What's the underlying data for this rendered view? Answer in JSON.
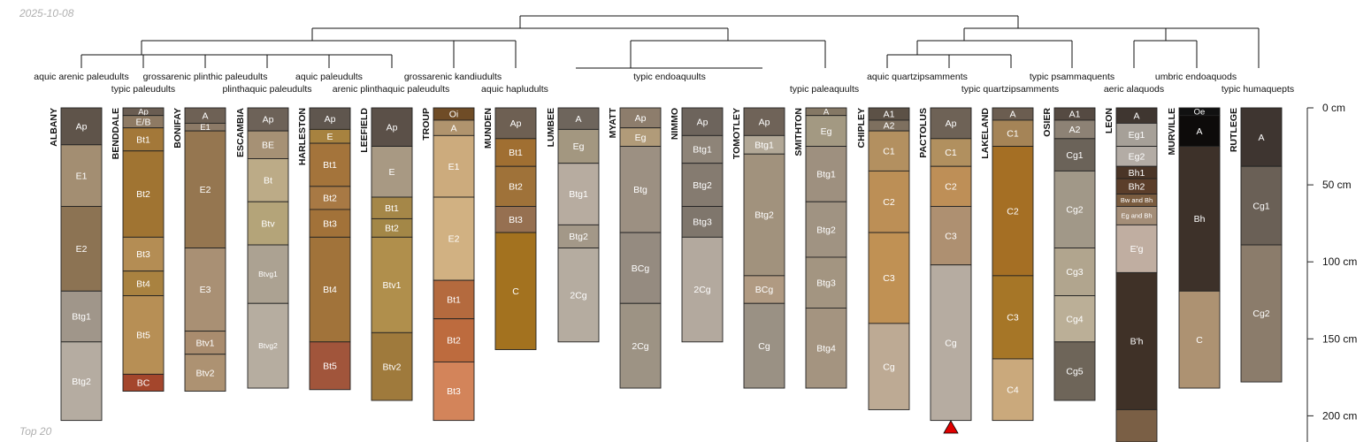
{
  "header": {
    "date": "2025-10-08"
  },
  "footer": {
    "note": "Top 20"
  },
  "chart_data": {
    "type": "soil-profile-sketch",
    "depth_units": "cm",
    "depth_axis": {
      "ticks": [
        0,
        50,
        100,
        150,
        200
      ],
      "tick_labels": [
        "0 cm",
        "50 cm",
        "100 cm",
        "150 cm",
        "200 cm"
      ],
      "range": [
        0,
        218
      ]
    },
    "profiles": [
      {
        "name": "ALBANY",
        "horizons": [
          {
            "name": "Ap",
            "top": 0,
            "bottom": 24,
            "color": "#5f544a"
          },
          {
            "name": "E1",
            "top": 24,
            "bottom": 64,
            "color": "#a38e72"
          },
          {
            "name": "E2",
            "top": 64,
            "bottom": 119,
            "color": "#8c7353"
          },
          {
            "name": "Btg1",
            "top": 119,
            "bottom": 152,
            "color": "#a0968a"
          },
          {
            "name": "Btg2",
            "top": 152,
            "bottom": 203,
            "color": "#b5aca1"
          }
        ]
      },
      {
        "name": "BENDDALE",
        "horizons": [
          {
            "name": "Ap",
            "top": 0,
            "bottom": 5,
            "color": "#6a5d52"
          },
          {
            "name": "E/B",
            "top": 5,
            "bottom": 13,
            "color": "#8e7a63"
          },
          {
            "name": "Bt1",
            "top": 13,
            "bottom": 28,
            "color": "#a37839"
          },
          {
            "name": "Bt2",
            "top": 28,
            "bottom": 84,
            "color": "#a07432"
          },
          {
            "name": "Bt3",
            "top": 84,
            "bottom": 106,
            "color": "#b48d54"
          },
          {
            "name": "Bt4",
            "top": 106,
            "bottom": 122,
            "color": "#a98240"
          },
          {
            "name": "Bt5",
            "top": 122,
            "bottom": 173,
            "color": "#b78f55"
          },
          {
            "name": "BC",
            "top": 173,
            "bottom": 184,
            "color": "#a4462c"
          }
        ]
      },
      {
        "name": "BONIFAY",
        "horizons": [
          {
            "name": "A",
            "top": 0,
            "bottom": 10,
            "color": "#6e6155"
          },
          {
            "name": "E1",
            "top": 10,
            "bottom": 15,
            "color": "#8c7a67"
          },
          {
            "name": "E2",
            "top": 15,
            "bottom": 91,
            "color": "#957650"
          },
          {
            "name": "E3",
            "top": 91,
            "bottom": 145,
            "color": "#a99074"
          },
          {
            "name": "Btv1",
            "top": 145,
            "bottom": 160,
            "color": "#a98c6e"
          },
          {
            "name": "Btv2",
            "top": 160,
            "bottom": 184,
            "color": "#ad9272"
          }
        ]
      },
      {
        "name": "ESCAMBIA",
        "horizons": [
          {
            "name": "Ap",
            "top": 0,
            "bottom": 15,
            "color": "#6d6258"
          },
          {
            "name": "BE",
            "top": 15,
            "bottom": 33,
            "color": "#a69175"
          },
          {
            "name": "Bt",
            "top": 33,
            "bottom": 61,
            "color": "#bcab87"
          },
          {
            "name": "Btv",
            "top": 61,
            "bottom": 89,
            "color": "#b4a479"
          },
          {
            "name": "Btvg1",
            "top": 89,
            "bottom": 127,
            "color": "#aca292"
          },
          {
            "name": "Btvg2",
            "top": 127,
            "bottom": 182,
            "color": "#b6ada0"
          }
        ]
      },
      {
        "name": "HARLESTON",
        "horizons": [
          {
            "name": "Ap",
            "top": 0,
            "bottom": 14,
            "color": "#5f564e"
          },
          {
            "name": "E",
            "top": 14,
            "bottom": 23,
            "color": "#a7823f"
          },
          {
            "name": "Bt1",
            "top": 23,
            "bottom": 51,
            "color": "#a4743b"
          },
          {
            "name": "Bt2",
            "top": 51,
            "bottom": 66,
            "color": "#a87944"
          },
          {
            "name": "Bt3",
            "top": 66,
            "bottom": 84,
            "color": "#a27239"
          },
          {
            "name": "Bt4",
            "top": 84,
            "bottom": 152,
            "color": "#a1733a"
          },
          {
            "name": "Bt5",
            "top": 152,
            "bottom": 183,
            "color": "#a1553b"
          }
        ]
      },
      {
        "name": "LEEFIELD",
        "horizons": [
          {
            "name": "Ap",
            "top": 0,
            "bottom": 25,
            "color": "#5b5048"
          },
          {
            "name": "E",
            "top": 25,
            "bottom": 58,
            "color": "#a89983"
          },
          {
            "name": "Bt1",
            "top": 58,
            "bottom": 72,
            "color": "#a58748"
          },
          {
            "name": "Bt2",
            "top": 72,
            "bottom": 84,
            "color": "#a38747"
          },
          {
            "name": "Btv1",
            "top": 84,
            "bottom": 146,
            "color": "#b08f4c"
          },
          {
            "name": "Btv2",
            "top": 146,
            "bottom": 190,
            "color": "#9f7a3c"
          }
        ]
      },
      {
        "name": "TROUP",
        "horizons": [
          {
            "name": "Oi",
            "top": 0,
            "bottom": 8,
            "color": "#6f4c26"
          },
          {
            "name": "A",
            "top": 8,
            "bottom": 18,
            "color": "#b0946e"
          },
          {
            "name": "E1",
            "top": 18,
            "bottom": 58,
            "color": "#ccab7d"
          },
          {
            "name": "E2",
            "top": 58,
            "bottom": 112,
            "color": "#d1b182"
          },
          {
            "name": "Bt1",
            "top": 112,
            "bottom": 137,
            "color": "#b46a3e"
          },
          {
            "name": "Bt2",
            "top": 137,
            "bottom": 165,
            "color": "#bd6b3e"
          },
          {
            "name": "Bt3",
            "top": 165,
            "bottom": 203,
            "color": "#d3845a"
          }
        ]
      },
      {
        "name": "MUNDEN",
        "horizons": [
          {
            "name": "Ap",
            "top": 0,
            "bottom": 20,
            "color": "#6e6053"
          },
          {
            "name": "Bt1",
            "top": 20,
            "bottom": 38,
            "color": "#a06f32"
          },
          {
            "name": "Bt2",
            "top": 38,
            "bottom": 64,
            "color": "#9f7239"
          },
          {
            "name": "Bt3",
            "top": 64,
            "bottom": 81,
            "color": "#967051"
          },
          {
            "name": "C",
            "top": 81,
            "bottom": 157,
            "color": "#a3721f"
          }
        ]
      },
      {
        "name": "LUMBEE",
        "horizons": [
          {
            "name": "A",
            "top": 0,
            "bottom": 14,
            "color": "#6e655c"
          },
          {
            "name": "Eg",
            "top": 14,
            "bottom": 36,
            "color": "#a39780"
          },
          {
            "name": "Btg1",
            "top": 36,
            "bottom": 76,
            "color": "#b7aca0"
          },
          {
            "name": "Btg2",
            "top": 76,
            "bottom": 91,
            "color": "#a39888"
          },
          {
            "name": "2Cg",
            "top": 91,
            "bottom": 152,
            "color": "#b5aca0"
          }
        ]
      },
      {
        "name": "MYATT",
        "horizons": [
          {
            "name": "Ap",
            "top": 0,
            "bottom": 13,
            "color": "#8d7d6c"
          },
          {
            "name": "Eg",
            "top": 13,
            "bottom": 25,
            "color": "#b19b79"
          },
          {
            "name": "Btg",
            "top": 25,
            "bottom": 81,
            "color": "#9c9082"
          },
          {
            "name": "BCg",
            "top": 81,
            "bottom": 127,
            "color": "#958b80"
          },
          {
            "name": "2Cg",
            "top": 127,
            "bottom": 182,
            "color": "#9d9384"
          }
        ]
      },
      {
        "name": "NIMMO",
        "horizons": [
          {
            "name": "Ap",
            "top": 0,
            "bottom": 18,
            "color": "#6d645c"
          },
          {
            "name": "Btg1",
            "top": 18,
            "bottom": 36,
            "color": "#8e8478"
          },
          {
            "name": "Btg2",
            "top": 36,
            "bottom": 64,
            "color": "#857b70"
          },
          {
            "name": "Btg3",
            "top": 64,
            "bottom": 84,
            "color": "#7f766c"
          },
          {
            "name": "2Cg",
            "top": 84,
            "bottom": 152,
            "color": "#b3a99e"
          }
        ]
      },
      {
        "name": "TOMOTLEY",
        "horizons": [
          {
            "name": "Ap",
            "top": 0,
            "bottom": 18,
            "color": "#6f6358"
          },
          {
            "name": "Btg1",
            "top": 18,
            "bottom": 30,
            "color": "#b2a897"
          },
          {
            "name": "Btg2",
            "top": 30,
            "bottom": 109,
            "color": "#a1927d"
          },
          {
            "name": "BCg",
            "top": 109,
            "bottom": 127,
            "color": "#b09a82"
          },
          {
            "name": "Cg",
            "top": 127,
            "bottom": 182,
            "color": "#9a9184"
          }
        ]
      },
      {
        "name": "SMITHTON",
        "horizons": [
          {
            "name": "A",
            "top": 0,
            "bottom": 5,
            "color": "#857865"
          },
          {
            "name": "Eg",
            "top": 5,
            "bottom": 25,
            "color": "#a39982"
          },
          {
            "name": "Btg1",
            "top": 25,
            "bottom": 61,
            "color": "#9e907f"
          },
          {
            "name": "Btg2",
            "top": 61,
            "bottom": 97,
            "color": "#a09382"
          },
          {
            "name": "Btg3",
            "top": 97,
            "bottom": 130,
            "color": "#a39581"
          },
          {
            "name": "Btg4",
            "top": 130,
            "bottom": 182,
            "color": "#a49480"
          }
        ]
      },
      {
        "name": "CHIPLEY",
        "horizons": [
          {
            "name": "A1",
            "top": 0,
            "bottom": 8,
            "color": "#5c5146"
          },
          {
            "name": "A2",
            "top": 8,
            "bottom": 15,
            "color": "#7e705f"
          },
          {
            "name": "C1",
            "top": 15,
            "bottom": 41,
            "color": "#b39060"
          },
          {
            "name": "C2",
            "top": 41,
            "bottom": 81,
            "color": "#bc8f56"
          },
          {
            "name": "C3",
            "top": 81,
            "bottom": 140,
            "color": "#c09154"
          },
          {
            "name": "Cg",
            "top": 140,
            "bottom": 196,
            "color": "#bdaa94"
          }
        ]
      },
      {
        "name": "PACTOLUS",
        "horizons": [
          {
            "name": "Ap",
            "top": 0,
            "bottom": 20,
            "color": "#6e6256"
          },
          {
            "name": "C1",
            "top": 20,
            "bottom": 38,
            "color": "#b1905f"
          },
          {
            "name": "C2",
            "top": 38,
            "bottom": 64,
            "color": "#be8f57"
          },
          {
            "name": "C3",
            "top": 64,
            "bottom": 102,
            "color": "#ae9071"
          },
          {
            "name": "Cg",
            "top": 102,
            "bottom": 203,
            "color": "#b6aca1"
          }
        ]
      },
      {
        "name": "LAKELAND",
        "horizons": [
          {
            "name": "A",
            "top": 0,
            "bottom": 8,
            "color": "#6b5d50"
          },
          {
            "name": "C1",
            "top": 8,
            "bottom": 25,
            "color": "#a58457"
          },
          {
            "name": "C2",
            "top": 25,
            "bottom": 109,
            "color": "#a56f24"
          },
          {
            "name": "C3",
            "top": 109,
            "bottom": 163,
            "color": "#a67627"
          },
          {
            "name": "C4",
            "top": 163,
            "bottom": 203,
            "color": "#caa97c"
          }
        ]
      },
      {
        "name": "OSIER",
        "horizons": [
          {
            "name": "A1",
            "top": 0,
            "bottom": 8,
            "color": "#554a42"
          },
          {
            "name": "A2",
            "top": 8,
            "bottom": 20,
            "color": "#8d8275"
          },
          {
            "name": "Cg1",
            "top": 20,
            "bottom": 41,
            "color": "#6b6359"
          },
          {
            "name": "Cg2",
            "top": 41,
            "bottom": 91,
            "color": "#a19888"
          },
          {
            "name": "Cg3",
            "top": 91,
            "bottom": 122,
            "color": "#b1a58e"
          },
          {
            "name": "Cg4",
            "top": 122,
            "bottom": 152,
            "color": "#bbaf97"
          },
          {
            "name": "Cg5",
            "top": 152,
            "bottom": 190,
            "color": "#6e6559"
          }
        ]
      },
      {
        "name": "LEON",
        "horizons": [
          {
            "name": "A",
            "top": 0,
            "bottom": 10,
            "color": "#3f3630"
          },
          {
            "name": "Eg1",
            "top": 10,
            "bottom": 25,
            "color": "#a6a098"
          },
          {
            "name": "Eg2",
            "top": 25,
            "bottom": 38,
            "color": "#b3aca5"
          },
          {
            "name": "Bh1",
            "top": 38,
            "bottom": 46,
            "color": "#4a3527"
          },
          {
            "name": "Bh2",
            "top": 46,
            "bottom": 56,
            "color": "#5b3e2a"
          },
          {
            "name": "Bw and Bh",
            "top": 56,
            "bottom": 64,
            "color": "#7a5c3f"
          },
          {
            "name": "Eg and Bh",
            "top": 64,
            "bottom": 76,
            "color": "#a48e78"
          },
          {
            "name": "E'g",
            "top": 76,
            "bottom": 107,
            "color": "#c0aea1"
          },
          {
            "name": "B'h",
            "top": 107,
            "bottom": 196,
            "color": "#3f3127"
          },
          {
            "name": "",
            "top": 196,
            "bottom": 218,
            "color": "#7a5f45"
          }
        ]
      },
      {
        "name": "MURVILLE",
        "horizons": [
          {
            "name": "Oe",
            "top": 0,
            "bottom": 5,
            "color": "#111111"
          },
          {
            "name": "A",
            "top": 5,
            "bottom": 25,
            "color": "#0d0b0a"
          },
          {
            "name": "Bh",
            "top": 25,
            "bottom": 119,
            "color": "#3d3129"
          },
          {
            "name": "C",
            "top": 119,
            "bottom": 182,
            "color": "#ad9272"
          }
        ]
      },
      {
        "name": "RUTLEGE",
        "horizons": [
          {
            "name": "A",
            "top": 0,
            "bottom": 38,
            "color": "#3e3530"
          },
          {
            "name": "Cg1",
            "top": 38,
            "bottom": 89,
            "color": "#6a6056"
          },
          {
            "name": "Cg2",
            "top": 89,
            "bottom": 178,
            "color": "#8b7c6b"
          }
        ]
      }
    ],
    "taxonomy_labels": [
      {
        "text": "aquic arenic paleudults",
        "row": 1
      },
      {
        "text": "grossarenic plinthic paleudults",
        "row": 1
      },
      {
        "text": "typic paleudults",
        "row": 2
      },
      {
        "text": "aquic paleudults",
        "row": 1
      },
      {
        "text": "plinthaquic paleudults",
        "row": 2
      },
      {
        "text": "arenic plinthaquic paleudults",
        "row": 2
      },
      {
        "text": "grossarenic kandiudults",
        "row": 1
      },
      {
        "text": "aquic hapludults",
        "row": 2
      },
      {
        "text": "typic endoaquults",
        "row": 1
      },
      {
        "text": "typic paleaquults",
        "row": 2
      },
      {
        "text": "aquic quartzipsamments",
        "row": 1
      },
      {
        "text": "typic quartzipsamments",
        "row": 2
      },
      {
        "text": "typic psammaquents",
        "row": 1
      },
      {
        "text": "umbric endoaquods",
        "row": 1
      },
      {
        "text": "aeric alaquods",
        "row": 2
      },
      {
        "text": "typic humaquepts",
        "row": 2
      }
    ],
    "marker": {
      "profile": "PACTOLUS",
      "shape": "triangle",
      "color": "#e00000"
    }
  }
}
